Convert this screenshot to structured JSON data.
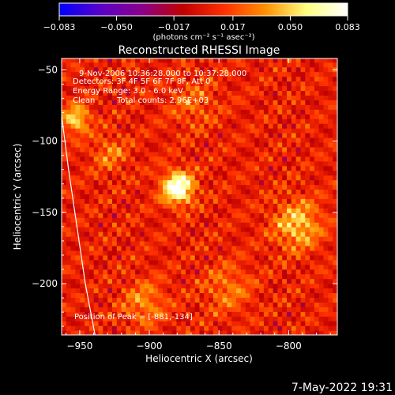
{
  "chart_data": {
    "type": "heatmap",
    "title": "Reconstructed RHESSI Image",
    "xlabel": "Heliocentric X (arcsec)",
    "ylabel": "Heliocentric Y (arcsec)",
    "xlim": [
      -963,
      -765
    ],
    "ylim": [
      -236,
      -42
    ],
    "x_ticks": [
      -950,
      -900,
      -850,
      -800
    ],
    "x_tick_labels": [
      "−950",
      "−900",
      "−850",
      "−800"
    ],
    "y_ticks": [
      -50,
      -100,
      -150,
      -200
    ],
    "y_tick_labels": [
      "−50",
      "−100",
      "−150",
      "−200"
    ],
    "colorbar": {
      "min": -0.083,
      "max": 0.083,
      "ticks": [
        -0.083,
        -0.05,
        -0.017,
        0.017,
        0.05,
        0.083
      ],
      "tick_labels": [
        "−0.083",
        "−0.050",
        "−0.017",
        "0.017",
        "0.050",
        "0.083"
      ],
      "unit_label": "(photons cm⁻² s⁻¹ asec⁻²)",
      "colormap": [
        "#0000ff",
        "#5a00c8",
        "#8a008a",
        "#c00000",
        "#ff3000",
        "#ff9000",
        "#ffff80",
        "#ffffff"
      ]
    },
    "sources": [
      {
        "x": -881,
        "y": -134,
        "intensity": 0.083,
        "sigma": 8
      },
      {
        "x": -954,
        "y": -86,
        "intensity": 0.05,
        "sigma": 7
      },
      {
        "x": -795,
        "y": -160,
        "intensity": 0.045,
        "sigma": 12
      },
      {
        "x": -930,
        "y": -110,
        "intensity": 0.025,
        "sigma": 9
      },
      {
        "x": -905,
        "y": -215,
        "intensity": 0.03,
        "sigma": 11
      },
      {
        "x": -845,
        "y": -205,
        "intensity": 0.025,
        "sigma": 12
      },
      {
        "x": -870,
        "y": -75,
        "intensity": 0.02,
        "sigma": 12
      }
    ],
    "limb_curve": [
      [
        -963,
        -82
      ],
      [
        -958,
        -120
      ],
      [
        -952,
        -160
      ],
      [
        -946,
        -200
      ],
      [
        -939,
        -236
      ]
    ],
    "peak": {
      "x": -881,
      "y": -134
    }
  },
  "annotations": {
    "time_range": "9-Nov-2006 10:36:28.000 to 10:37:28.000",
    "detectors": "Detectors: 3F 4F 5F 6F 7F 8F, Att 0",
    "energy": "Energy Range: 3.0 - 6.0 keV",
    "algorithm": "Clean",
    "total_counts": "Total counts: 2.96E+03",
    "peak_position": "Position of Peak = [-881,-134]"
  },
  "footer": {
    "timestamp": "7-May-2022 19:31"
  }
}
